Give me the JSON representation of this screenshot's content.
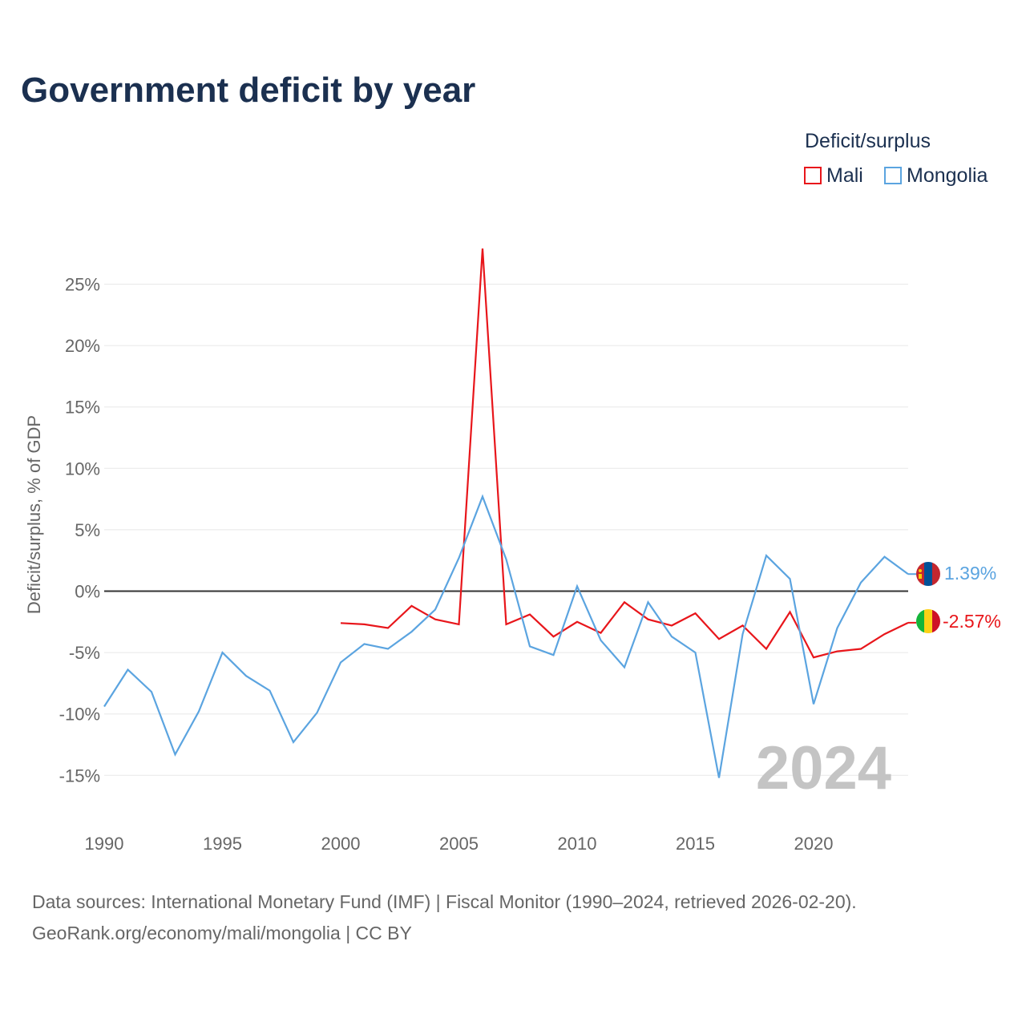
{
  "title": "Government deficit by year",
  "legend": {
    "title": "Deficit/surplus",
    "items": [
      {
        "name": "Mali",
        "color": "#e8161b"
      },
      {
        "name": "Mongolia",
        "color": "#5ba4e0"
      }
    ]
  },
  "source": {
    "line1": "Data sources: International Monetary Fund (IMF) | Fiscal Monitor (1990–2024, retrieved 2026-02-20).",
    "line2": "GeoRank.org/economy/mali/mongolia | CC BY"
  },
  "chart_data": {
    "type": "line",
    "title": "Government deficit by year",
    "xlabel": "",
    "ylabel": "Deficit/surplus, % of GDP",
    "xlim": [
      1990,
      2024
    ],
    "ylim": [
      -17,
      28
    ],
    "x_ticks": [
      1990,
      1995,
      2000,
      2005,
      2010,
      2015,
      2020
    ],
    "y_ticks": [
      -15,
      -10,
      -5,
      0,
      5,
      10,
      15,
      20,
      25
    ],
    "y_tick_labels": [
      "-15%",
      "-10%",
      "-5%",
      "0%",
      "5%",
      "10%",
      "15%",
      "20%",
      "25%"
    ],
    "grid": true,
    "year_watermark": "2024",
    "series": [
      {
        "name": "Mali",
        "color": "#e8161b",
        "x": [
          2000,
          2001,
          2002,
          2003,
          2004,
          2005,
          2006,
          2007,
          2008,
          2009,
          2010,
          2011,
          2012,
          2013,
          2014,
          2015,
          2016,
          2017,
          2018,
          2019,
          2020,
          2021,
          2022,
          2023,
          2024
        ],
        "values": [
          -2.6,
          -2.7,
          -3.0,
          -1.2,
          -2.3,
          -2.7,
          27.9,
          -2.7,
          -1.9,
          -3.7,
          -2.5,
          -3.4,
          -0.9,
          -2.3,
          -2.8,
          -1.8,
          -3.9,
          -2.8,
          -4.7,
          -1.7,
          -5.4,
          -4.9,
          -4.7,
          -3.5,
          -2.57
        ],
        "end_label": "-2.57%"
      },
      {
        "name": "Mongolia",
        "color": "#5ba4e0",
        "x": [
          1990,
          1991,
          1992,
          1993,
          1994,
          1995,
          1996,
          1997,
          1998,
          1999,
          2000,
          2001,
          2002,
          2003,
          2004,
          2005,
          2006,
          2007,
          2008,
          2009,
          2010,
          2011,
          2012,
          2013,
          2014,
          2015,
          2016,
          2017,
          2018,
          2019,
          2020,
          2021,
          2022,
          2023,
          2024
        ],
        "values": [
          -9.4,
          -6.4,
          -8.2,
          -13.3,
          -9.8,
          -5.0,
          -6.9,
          -8.1,
          -12.3,
          -9.9,
          -5.8,
          -4.3,
          -4.7,
          -3.3,
          -1.5,
          2.7,
          7.7,
          2.6,
          -4.5,
          -5.2,
          0.4,
          -4.0,
          -6.2,
          -0.9,
          -3.7,
          -5.0,
          -15.2,
          -3.5,
          2.9,
          1.0,
          -9.2,
          -3.0,
          0.7,
          2.8,
          1.39
        ],
        "end_label": "1.39%"
      }
    ]
  }
}
